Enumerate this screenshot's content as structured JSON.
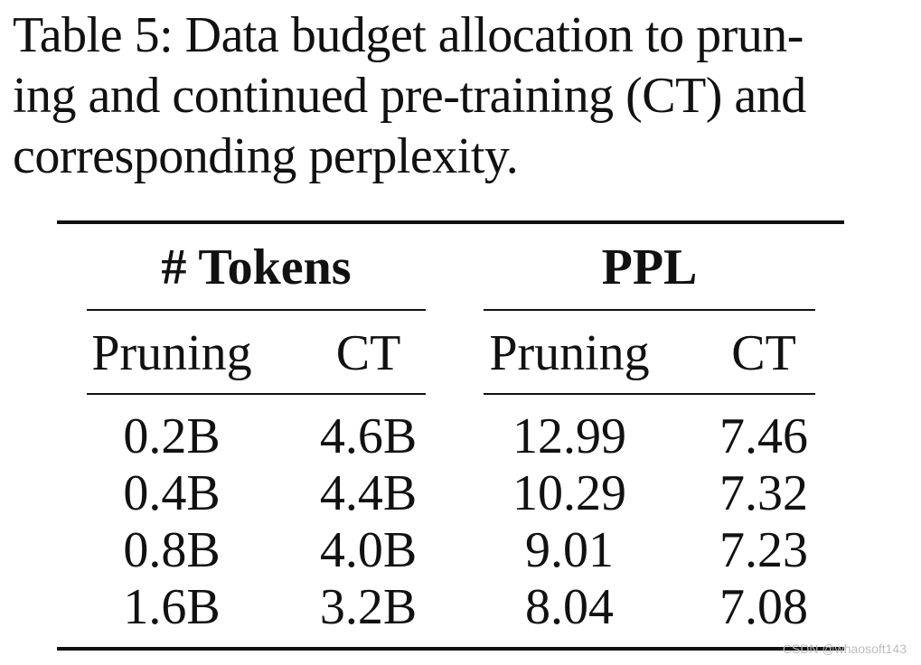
{
  "caption": {
    "lines": [
      "Table 5: Data budget allocation to prun-",
      "ing and continued pre-training (CT) and",
      "corresponding perplexity."
    ]
  },
  "table": {
    "group_headers": [
      "# Tokens",
      "PPL"
    ],
    "sub_headers": [
      "Pruning",
      "CT",
      "Pruning",
      "CT"
    ],
    "rows": [
      [
        "0.2B",
        "4.6B",
        "12.99",
        "7.46"
      ],
      [
        "0.4B",
        "4.4B",
        "10.29",
        "7.32"
      ],
      [
        "0.8B",
        "4.0B",
        "9.01",
        "7.23"
      ],
      [
        "1.6B",
        "3.2B",
        "8.04",
        "7.08"
      ]
    ]
  },
  "watermark": "CSDN @whaosoft143"
}
